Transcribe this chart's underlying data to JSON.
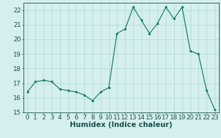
{
  "x": [
    0,
    1,
    2,
    3,
    4,
    5,
    6,
    7,
    8,
    9,
    10,
    11,
    12,
    13,
    14,
    15,
    16,
    17,
    18,
    19,
    20,
    21,
    22,
    23
  ],
  "y": [
    16.4,
    17.1,
    17.2,
    17.1,
    16.6,
    16.5,
    16.4,
    16.2,
    15.8,
    16.4,
    16.7,
    20.4,
    20.7,
    22.2,
    21.3,
    20.4,
    21.1,
    22.2,
    21.4,
    22.2,
    19.2,
    19.0,
    16.5,
    15.2
  ],
  "xlabel": "Humidex (Indice chaleur)",
  "ylim": [
    15,
    22.5
  ],
  "xlim": [
    -0.5,
    23.5
  ],
  "yticks": [
    15,
    16,
    17,
    18,
    19,
    20,
    21,
    22
  ],
  "xticks": [
    0,
    1,
    2,
    3,
    4,
    5,
    6,
    7,
    8,
    9,
    10,
    11,
    12,
    13,
    14,
    15,
    16,
    17,
    18,
    19,
    20,
    21,
    22,
    23
  ],
  "line_color": "#1a7a6e",
  "marker_color": "#1a7a6e",
  "bg_color": "#d4efed",
  "grid_color": "#aed8d4",
  "axis_color": "#2a6060",
  "label_color": "#1a5050",
  "tick_label_size": 6.5,
  "xlabel_size": 7.5
}
